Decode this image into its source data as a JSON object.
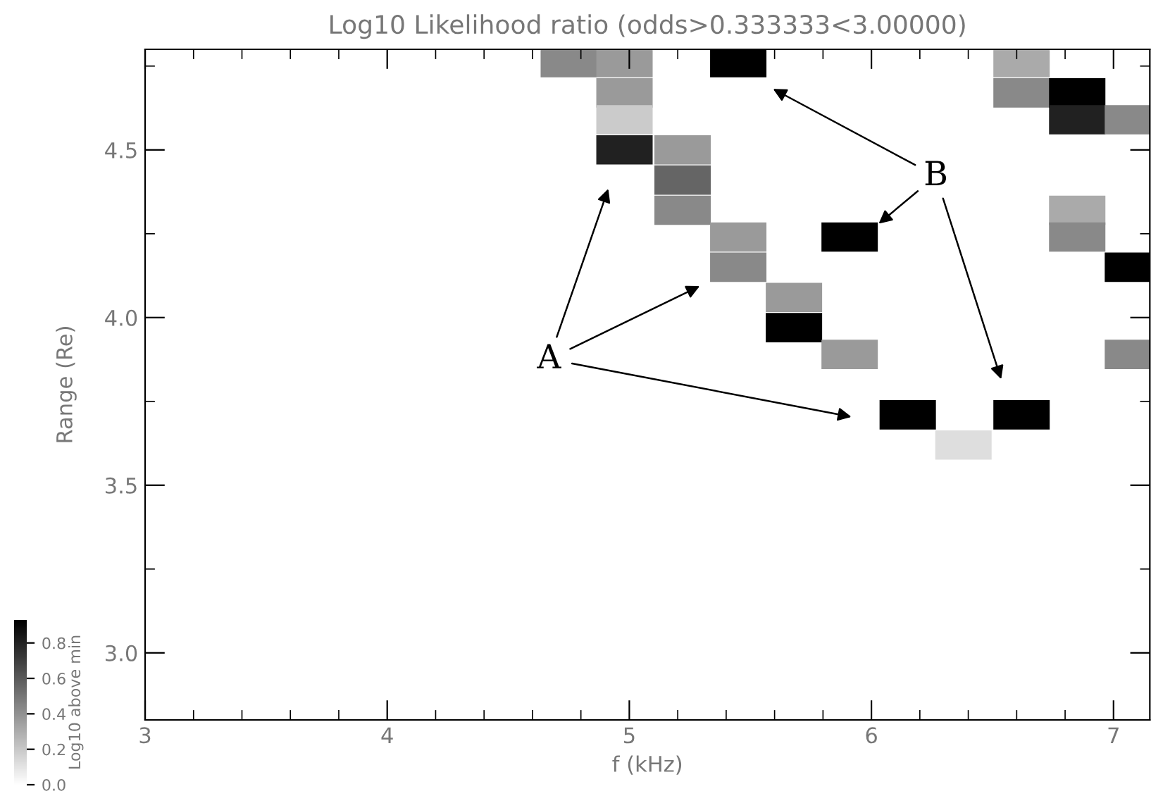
{
  "chart_data": {
    "type": "scatter",
    "title": "Log10 Likelihood ratio (odds>0.333333<3.00000)",
    "xlabel": "f (kHz)",
    "ylabel": "Range (Re)",
    "clabel": "Log10 above min",
    "x": [
      4.75,
      4.98,
      5.45,
      6.62,
      4.98,
      6.62,
      6.85,
      4.98,
      6.85,
      7.08,
      4.98,
      5.22,
      5.22,
      5.22,
      6.85,
      5.45,
      5.91,
      6.85,
      5.45,
      7.08,
      5.68,
      5.68,
      5.91,
      7.08,
      6.15,
      6.62,
      6.38
    ],
    "values": [
      4.76,
      4.76,
      4.76,
      4.76,
      4.67,
      4.67,
      4.67,
      4.59,
      4.59,
      4.59,
      4.5,
      4.5,
      4.41,
      4.32,
      4.32,
      4.24,
      4.24,
      4.24,
      4.15,
      4.15,
      4.06,
      3.97,
      3.89,
      3.89,
      3.71,
      3.71,
      3.62
    ],
    "cvalues": [
      0.43,
      0.37,
      0.93,
      0.31,
      0.37,
      0.43,
      0.93,
      0.19,
      0.81,
      0.43,
      0.81,
      0.37,
      0.56,
      0.43,
      0.31,
      0.37,
      0.93,
      0.43,
      0.43,
      0.93,
      0.37,
      0.93,
      0.37,
      0.43,
      0.93,
      0.93,
      0.12
    ],
    "marker": "square",
    "xlim": [
      3,
      7.15
    ],
    "ylim": [
      2.8,
      4.8
    ],
    "xticks": [
      3,
      4,
      5,
      6,
      7
    ],
    "yticks": [
      {
        "value": 3.0,
        "label": "3.0"
      },
      {
        "value": 3.5,
        "label": "3.5"
      },
      {
        "value": 4.0,
        "label": "4.0"
      },
      {
        "value": 4.5,
        "label": "4.5"
      }
    ],
    "clim": [
      0,
      0.93
    ],
    "cticks": [
      {
        "value": 0.0,
        "label": "0.0"
      },
      {
        "value": 0.2,
        "label": "0.2"
      },
      {
        "value": 0.4,
        "label": "0.4"
      },
      {
        "value": 0.6,
        "label": "0.6"
      },
      {
        "value": 0.8,
        "label": "0.8"
      }
    ],
    "grid": false,
    "annotations": [
      "A",
      {
        "text": "B",
        "x": 6.03,
        "y": 4.28
      }
    ]
  }
}
